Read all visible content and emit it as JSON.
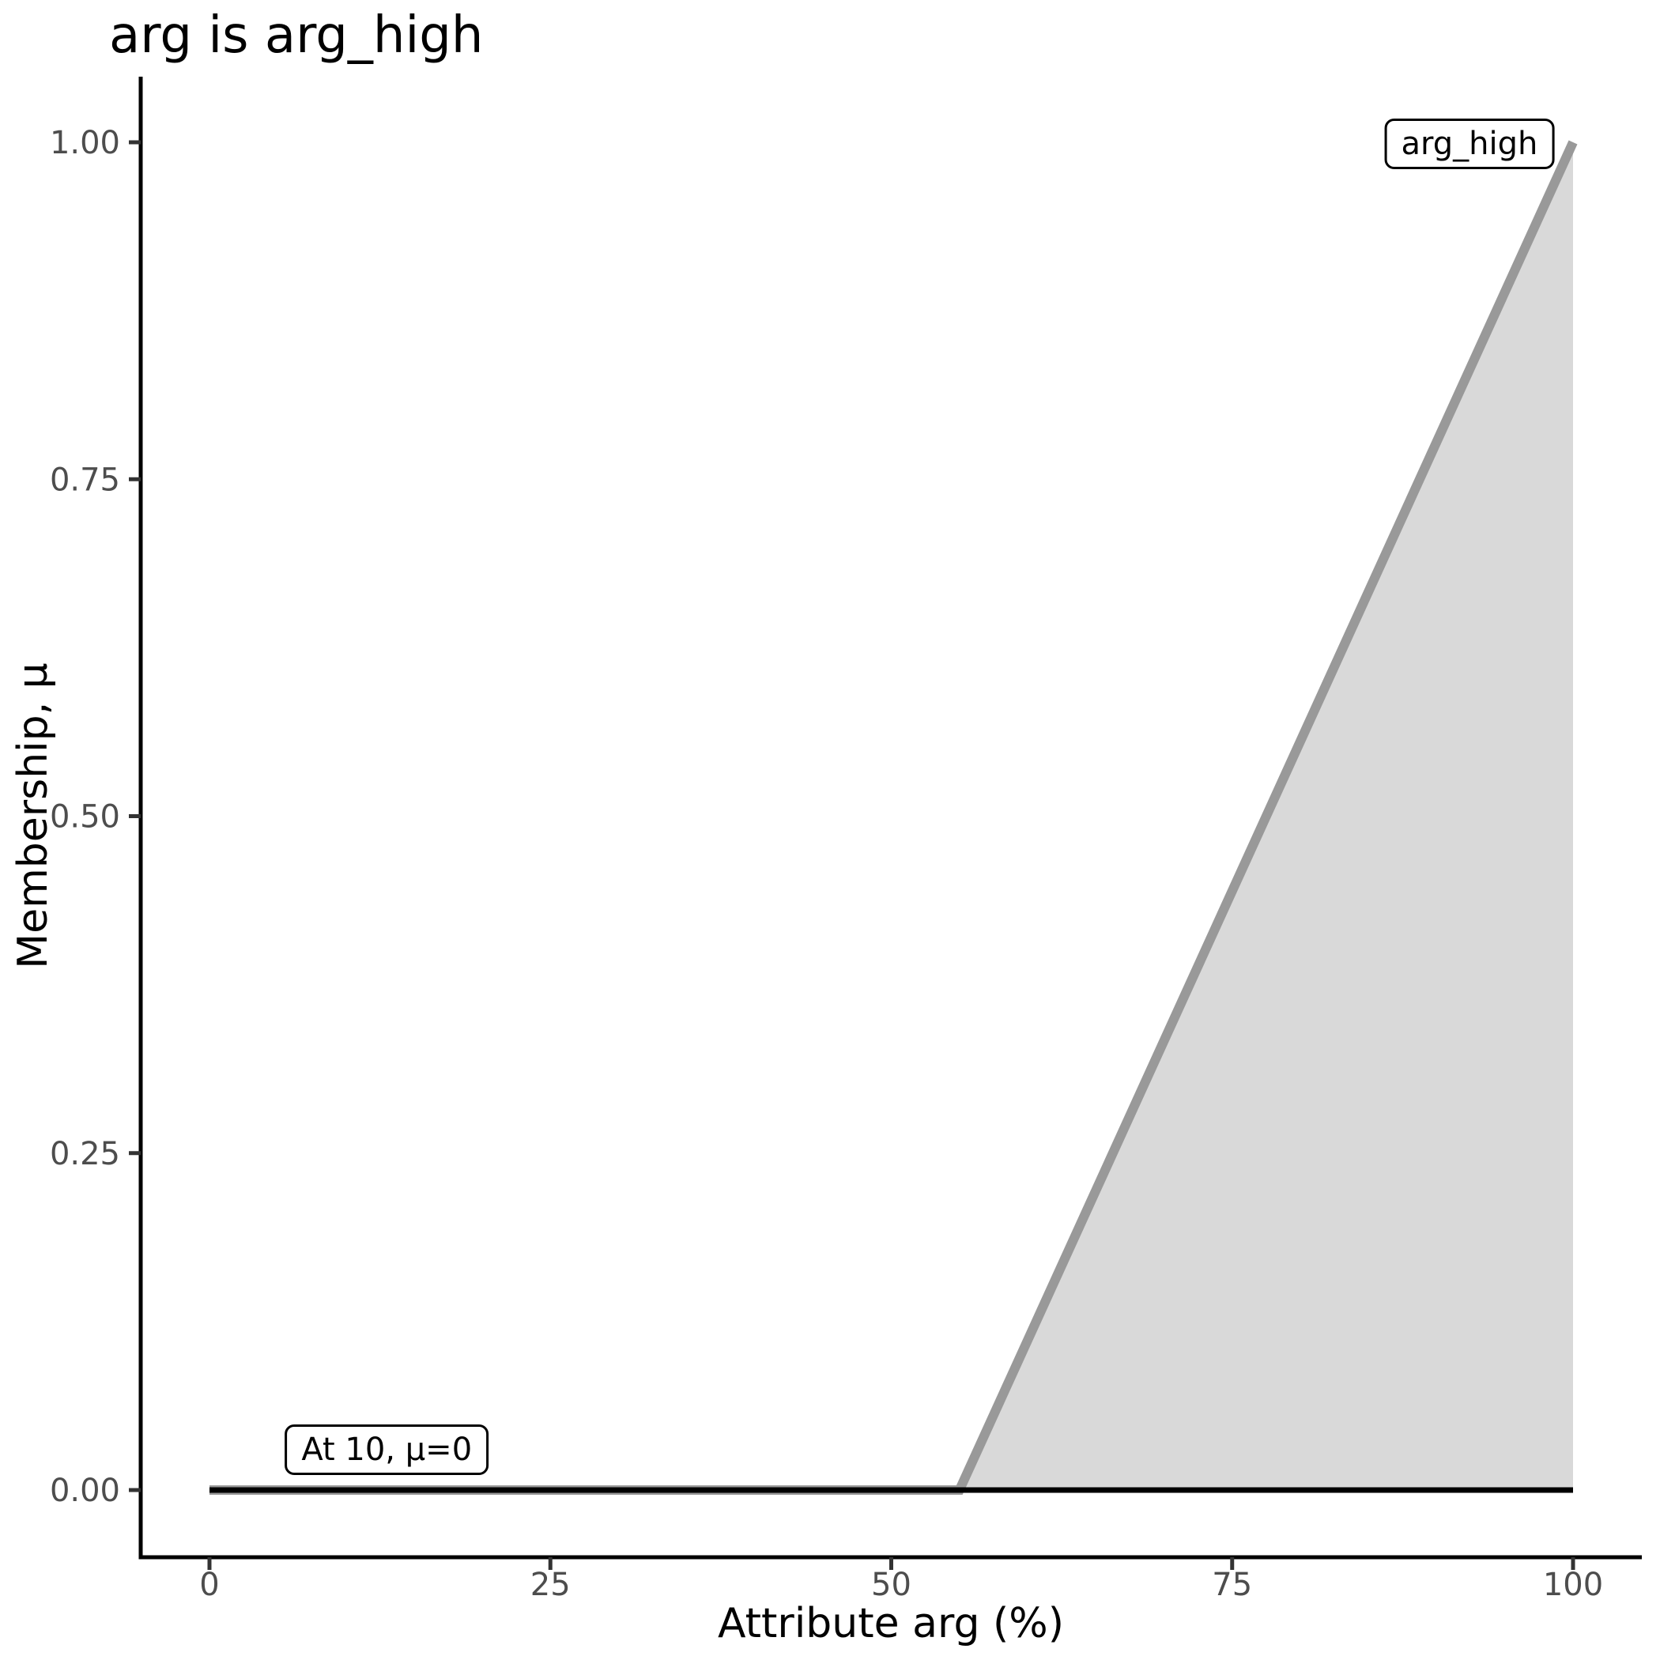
{
  "chart_data": {
    "type": "area",
    "title": "arg is arg_high",
    "xlabel": "Attribute arg (%)",
    "ylabel": "Membership, μ",
    "xlim": [
      0,
      100
    ],
    "ylim": [
      0,
      1
    ],
    "grid": "off",
    "legend": "none",
    "x_ticks": [
      {
        "value": 0,
        "label": "0"
      },
      {
        "value": 25,
        "label": "25"
      },
      {
        "value": 50,
        "label": "50"
      },
      {
        "value": 75,
        "label": "75"
      },
      {
        "value": 100,
        "label": "100"
      }
    ],
    "y_ticks": [
      {
        "value": 0.0,
        "label": "0.00"
      },
      {
        "value": 0.25,
        "label": "0.25"
      },
      {
        "value": 0.5,
        "label": "0.50"
      },
      {
        "value": 0.75,
        "label": "0.75"
      },
      {
        "value": 1.0,
        "label": "1.00"
      }
    ],
    "series": [
      {
        "name": "arg_high membership function",
        "type": "area",
        "points": [
          [
            0,
            0
          ],
          [
            55,
            0
          ],
          [
            100,
            1
          ]
        ],
        "fill_points": [
          [
            55,
            0
          ],
          [
            100,
            1
          ],
          [
            100,
            0
          ]
        ],
        "stroke": "#999999",
        "fill": "#d9d9d9",
        "stroke_width": 12
      },
      {
        "name": "membership level at evaluated value",
        "type": "line",
        "points": [
          [
            0,
            0
          ],
          [
            100,
            0
          ]
        ],
        "stroke": "#000000",
        "stroke_width": 7
      }
    ],
    "annotations": [
      {
        "label": "At 10, μ=0",
        "x": 13.0,
        "y": 0.03
      },
      {
        "label": "arg_high",
        "x": 92.4,
        "y": 0.999
      }
    ],
    "colors": {
      "axis_line": "#000000",
      "tick_mark": "#333333",
      "tick_label": "#4d4d4d",
      "membership_line": "#999999",
      "membership_fill": "#d9d9d9",
      "level_line": "#000000"
    }
  }
}
